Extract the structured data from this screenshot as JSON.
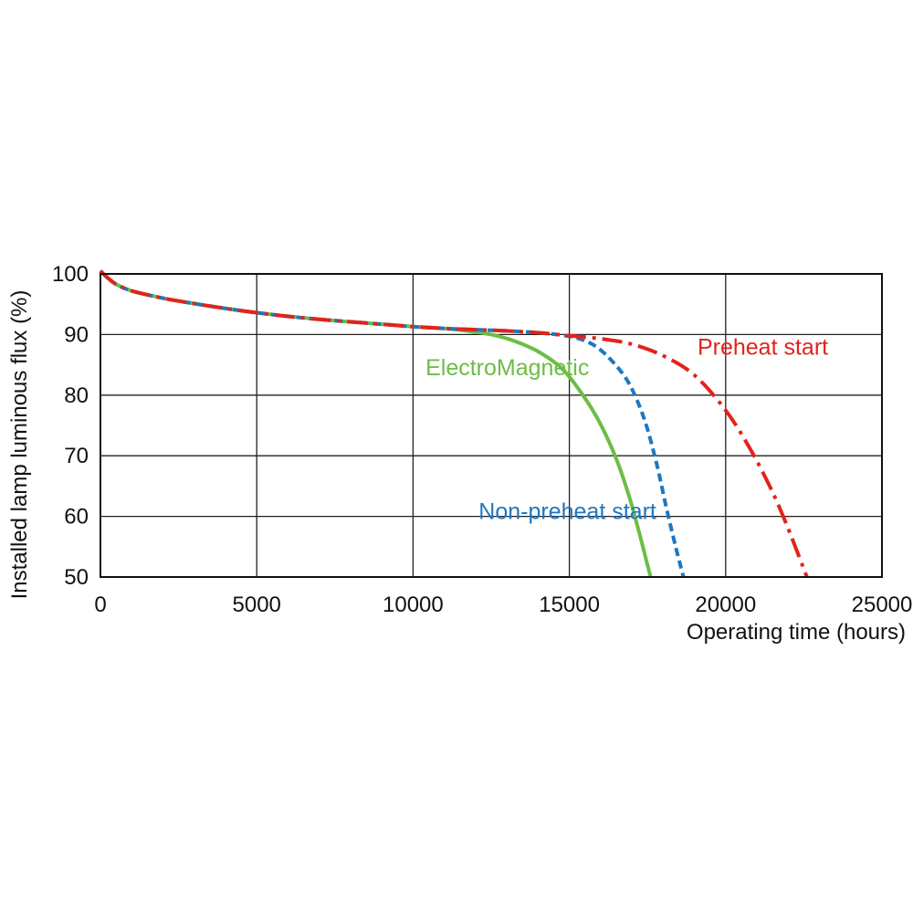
{
  "chart_data": {
    "type": "line",
    "title": "",
    "xlabel": "Operating time (hours)",
    "ylabel": "Installed lamp luminous flux  (%)",
    "xlim": [
      0,
      25000
    ],
    "ylim": [
      50,
      100
    ],
    "x_ticks": [
      0,
      5000,
      10000,
      15000,
      20000,
      25000
    ],
    "y_ticks": [
      50,
      60,
      70,
      80,
      90,
      100
    ],
    "grid": true,
    "legend": "inline labels",
    "series": [
      {
        "name": "ElectroMagnetic",
        "color": "#6cbd45",
        "style": "solid",
        "points": [
          [
            0,
            100.5
          ],
          [
            200,
            99.5
          ],
          [
            500,
            98.3
          ],
          [
            1000,
            97.2
          ],
          [
            2000,
            96.0
          ],
          [
            3000,
            95.1
          ],
          [
            4000,
            94.3
          ],
          [
            5000,
            93.6
          ],
          [
            6000,
            93.0
          ],
          [
            7000,
            92.5
          ],
          [
            8000,
            92.1
          ],
          [
            9000,
            91.7
          ],
          [
            10000,
            91.3
          ],
          [
            11000,
            91.0
          ],
          [
            11700,
            90.6
          ],
          [
            12500,
            90.0
          ],
          [
            13200,
            89.0
          ],
          [
            14000,
            87.2
          ],
          [
            14800,
            84.2
          ],
          [
            15500,
            79.5
          ],
          [
            16000,
            75.2
          ],
          [
            16500,
            69.5
          ],
          [
            16900,
            63.5
          ],
          [
            17200,
            58.0
          ],
          [
            17450,
            53.0
          ],
          [
            17600,
            50.0
          ]
        ]
      },
      {
        "name": "Non-preheat start",
        "color": "#1f77c0",
        "style": "dashed",
        "points": [
          [
            0,
            100.5
          ],
          [
            200,
            99.5
          ],
          [
            500,
            98.3
          ],
          [
            1000,
            97.2
          ],
          [
            2000,
            96.0
          ],
          [
            3000,
            95.1
          ],
          [
            4000,
            94.3
          ],
          [
            5000,
            93.6
          ],
          [
            6000,
            93.0
          ],
          [
            7000,
            92.5
          ],
          [
            8000,
            92.1
          ],
          [
            9000,
            91.7
          ],
          [
            10000,
            91.3
          ],
          [
            11000,
            91.0
          ],
          [
            12000,
            90.8
          ],
          [
            13000,
            90.6
          ],
          [
            14000,
            90.3
          ],
          [
            15000,
            89.7
          ],
          [
            15700,
            88.5
          ],
          [
            16300,
            86.0
          ],
          [
            16900,
            82.0
          ],
          [
            17400,
            76.0
          ],
          [
            17800,
            68.5
          ],
          [
            18100,
            61.5
          ],
          [
            18400,
            55.0
          ],
          [
            18650,
            50.0
          ]
        ]
      },
      {
        "name": "Preheat start",
        "color": "#e2231a",
        "style": "dashdot",
        "points": [
          [
            0,
            100.5
          ],
          [
            200,
            99.5
          ],
          [
            500,
            98.3
          ],
          [
            1000,
            97.2
          ],
          [
            2000,
            96.0
          ],
          [
            3000,
            95.1
          ],
          [
            4000,
            94.3
          ],
          [
            5000,
            93.6
          ],
          [
            6000,
            93.0
          ],
          [
            7000,
            92.5
          ],
          [
            8000,
            92.1
          ],
          [
            9000,
            91.7
          ],
          [
            10000,
            91.3
          ],
          [
            11000,
            91.0
          ],
          [
            12000,
            90.8
          ],
          [
            13000,
            90.6
          ],
          [
            14000,
            90.3
          ],
          [
            15000,
            89.8
          ],
          [
            16000,
            89.3
          ],
          [
            17000,
            88.4
          ],
          [
            18000,
            86.5
          ],
          [
            19000,
            83.3
          ],
          [
            20000,
            77.5
          ],
          [
            20800,
            71.0
          ],
          [
            21500,
            64.0
          ],
          [
            22000,
            58.0
          ],
          [
            22300,
            54.0
          ],
          [
            22600,
            50.0
          ]
        ]
      }
    ],
    "annotations": [
      {
        "text": "Preheat start",
        "series": 2,
        "x": 19100,
        "y": 86.7
      },
      {
        "text": "ElectroMagnetic",
        "series": 0,
        "x": 10400,
        "y": 83.3
      },
      {
        "text": "Non-preheat start",
        "series": 1,
        "x": 12100,
        "y": 59.6
      }
    ]
  }
}
